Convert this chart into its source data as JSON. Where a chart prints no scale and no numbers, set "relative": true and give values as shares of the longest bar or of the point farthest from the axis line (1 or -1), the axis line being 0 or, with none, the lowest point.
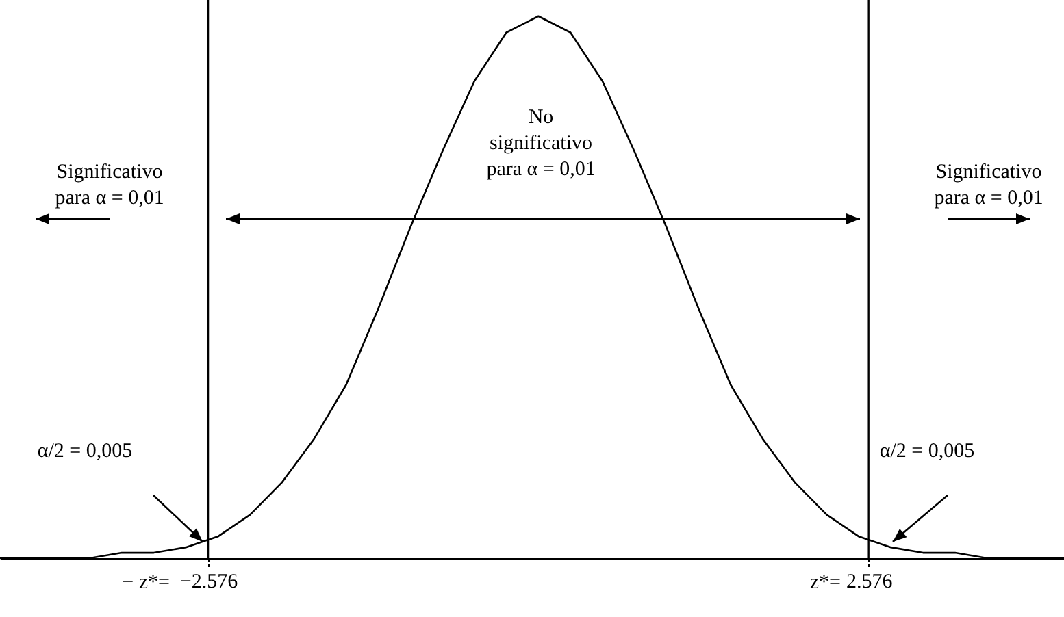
{
  "chart_data": {
    "type": "line",
    "relative": true,
    "tick_labels": "x",
    "grid": false,
    "marker": "none",
    "line_style": "solid",
    "x": [
      -4.2,
      -4,
      -3.75,
      -3.5,
      -3.25,
      -3,
      -2.75,
      -2.5,
      -2.25,
      -2,
      -1.75,
      -1.5,
      -1.25,
      -1,
      -0.75,
      -0.5,
      -0.25,
      0,
      0.25,
      0.5,
      0.75,
      1,
      1.25,
      1.5,
      1.75,
      2,
      2.25,
      2.5,
      2.75,
      3,
      3.25,
      3.5,
      3.75,
      4,
      4.1
    ],
    "series": [
      {
        "color": "#000000",
        "values": [
          0,
          0,
          0,
          0,
          0.01,
          0.01,
          0.02,
          0.04,
          0.08,
          0.14,
          0.22,
          0.32,
          0.46,
          0.61,
          0.75,
          0.88,
          0.97,
          1,
          0.97,
          0.88,
          0.75,
          0.61,
          0.46,
          0.32,
          0.22,
          0.14,
          0.08,
          0.04,
          0.02,
          0.01,
          0.01,
          0,
          0,
          0,
          0
        ]
      }
    ],
    "xlim": [
      -4.2,
      4.1
    ],
    "xticks": [
      -2.576,
      2.576
    ],
    "ref_lines": [
      {
        "axis": "x",
        "value": -2.576,
        "color": "#000000"
      },
      {
        "axis": "x",
        "value": 2.576,
        "color": "#000000"
      }
    ],
    "annotations": [
      "Significativo\npara α = 0,01",
      "No\nsignificativo\npara α = 0,01",
      "Significativo\npara α = 0,01",
      "α/2 = 0,005",
      "α/2 = 0,005",
      "− z*=",
      "z*="
    ]
  }
}
